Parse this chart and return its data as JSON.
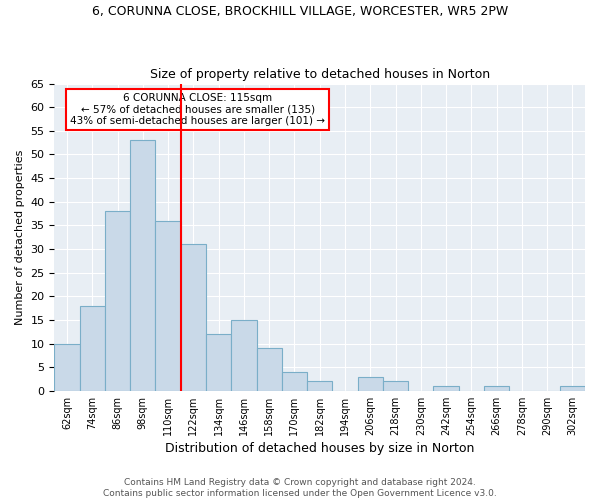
{
  "title": "6, CORUNNA CLOSE, BROCKHILL VILLAGE, WORCESTER, WR5 2PW",
  "subtitle": "Size of property relative to detached houses in Norton",
  "xlabel": "Distribution of detached houses by size in Norton",
  "ylabel": "Number of detached properties",
  "bin_labels": [
    "62sqm",
    "74sqm",
    "86sqm",
    "98sqm",
    "110sqm",
    "122sqm",
    "134sqm",
    "146sqm",
    "158sqm",
    "170sqm",
    "182sqm",
    "194sqm",
    "206sqm",
    "218sqm",
    "230sqm",
    "242sqm",
    "254sqm",
    "266sqm",
    "278sqm",
    "290sqm",
    "302sqm"
  ],
  "bar_values": [
    10,
    18,
    38,
    53,
    36,
    31,
    12,
    15,
    9,
    4,
    2,
    0,
    3,
    2,
    0,
    1,
    0,
    1,
    0,
    0,
    1
  ],
  "bar_color": "#c9d9e8",
  "bar_edge_color": "#7aaec8",
  "vline_x": 4.5,
  "vline_color": "red",
  "annotation_text": "6 CORUNNA CLOSE: 115sqm\n← 57% of detached houses are smaller (135)\n43% of semi-detached houses are larger (101) →",
  "annotation_box_color": "white",
  "annotation_box_edge_color": "red",
  "ylim": [
    0,
    65
  ],
  "yticks": [
    0,
    5,
    10,
    15,
    20,
    25,
    30,
    35,
    40,
    45,
    50,
    55,
    60,
    65
  ],
  "background_color": "#e8eef4",
  "footer_line1": "Contains HM Land Registry data © Crown copyright and database right 2024.",
  "footer_line2": "Contains public sector information licensed under the Open Government Licence v3.0."
}
